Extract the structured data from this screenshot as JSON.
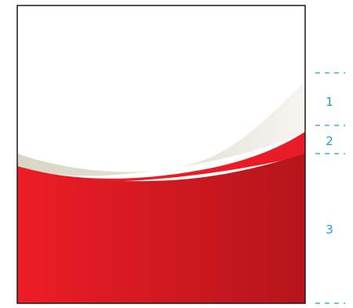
{
  "diagram": {
    "colors": {
      "frame": "#1a1a1a",
      "cream_light": "#f6f5f0",
      "cream_dark": "#d9d6c5",
      "red_light": "#ee1c25",
      "red_dark": "#b5151b",
      "guide": "#1aa0cc"
    },
    "regions": [
      {
        "label": "1"
      },
      {
        "label": "2"
      },
      {
        "label": "3"
      }
    ]
  }
}
